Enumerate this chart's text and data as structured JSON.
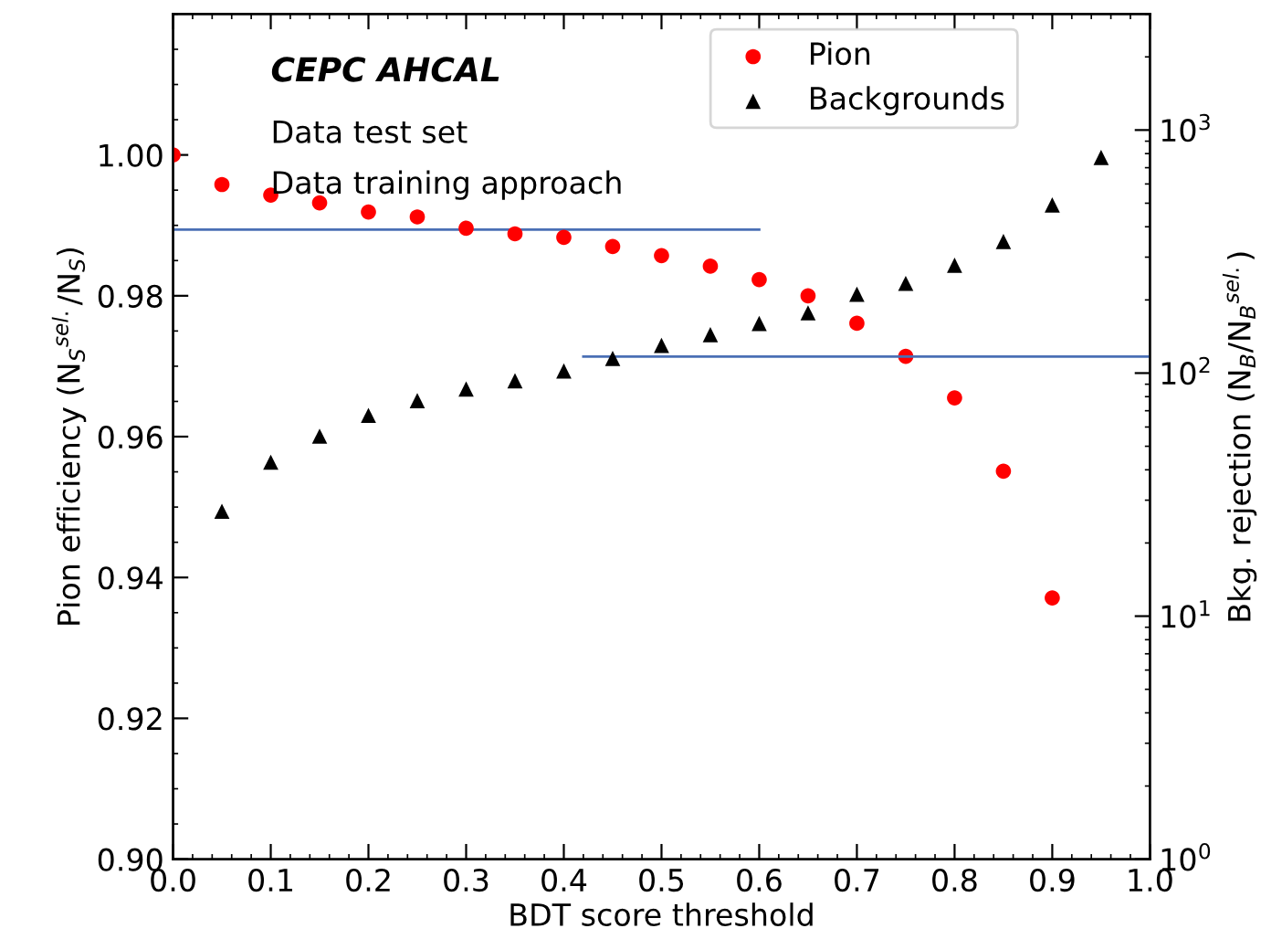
{
  "chart_data": {
    "type": "scatter",
    "xlabel": "BDT score threshold",
    "ylabel": "Pion efficiency (N$_{S}$$^{sel.}$/N$_{S}$)",
    "y2label": "Bkg. rejection (N$_{B}$/N$_{B}$$^{sel.}$)",
    "annotations": [
      "CEPC AHCAL",
      "Data test set",
      "Data training approach"
    ],
    "xlim": [
      0.0,
      1.0
    ],
    "xticks": [
      {
        "value": 0.0,
        "label": "0.0"
      },
      0.1,
      0.2,
      0.3,
      0.4,
      0.5,
      0.6,
      0.7,
      0.8,
      0.9,
      {
        "value": 1.0,
        "label": "1.0"
      }
    ],
    "ylim": [
      0.9,
      1.02
    ],
    "yticks": [
      {
        "value": 0.9,
        "label": "0.90"
      },
      0.92,
      0.94,
      0.96,
      0.98,
      {
        "value": 1.0,
        "label": "1.00"
      }
    ],
    "y2lim": [
      1,
      3000
    ],
    "y2ticks": [
      {
        "value": 1,
        "label": "10$^{0}$"
      },
      {
        "value": 10,
        "label": "10$^{1}$"
      },
      {
        "value": 100,
        "label": "10$^{2}$"
      },
      {
        "value": 1000,
        "label": "10$^{3}$"
      }
    ],
    "log": "y2",
    "grid": false,
    "legend": "top right",
    "series": [
      {
        "name": "Pion",
        "color": "#ff0000",
        "marker": "circle",
        "x": [
          0.0,
          0.05,
          0.1,
          0.15,
          0.2,
          0.25,
          0.3,
          0.35,
          0.4,
          0.45,
          0.5,
          0.55,
          0.6,
          0.65,
          0.7,
          0.75,
          0.8,
          0.85,
          0.9
        ],
        "values": [
          1.0,
          0.9958,
          0.9943,
          0.9932,
          0.9919,
          0.9912,
          0.9896,
          0.9888,
          0.9883,
          0.987,
          0.9857,
          0.9842,
          0.9823,
          0.98,
          0.9761,
          0.9714,
          0.9655,
          0.9551,
          0.9371
        ]
      },
      {
        "name": "Backgrounds",
        "color": "#000000",
        "marker": "triangle",
        "axis": "y2",
        "x": [
          0.05,
          0.1,
          0.15,
          0.2,
          0.25,
          0.3,
          0.35,
          0.4,
          0.45,
          0.5,
          0.55,
          0.6,
          0.65,
          0.7,
          0.75,
          0.8,
          0.85,
          0.9,
          0.95
        ],
        "values": [
          27,
          43,
          55,
          67,
          77,
          86,
          93,
          102,
          115,
          130,
          144,
          160,
          177,
          211,
          234,
          278,
          348,
          492,
          771
        ]
      },
      {
        "type": "line",
        "color": "#4a6fb5",
        "line_style": "solid",
        "marker": "none",
        "x": [
          0.0,
          0.6
        ],
        "values": [
          0.9894,
          0.9894
        ]
      },
      {
        "type": "line",
        "color": "#4a6fb5",
        "line_style": "solid",
        "marker": "none",
        "axis": "y2",
        "x": [
          0.42,
          1.0
        ],
        "values": [
          117,
          117
        ]
      }
    ]
  }
}
